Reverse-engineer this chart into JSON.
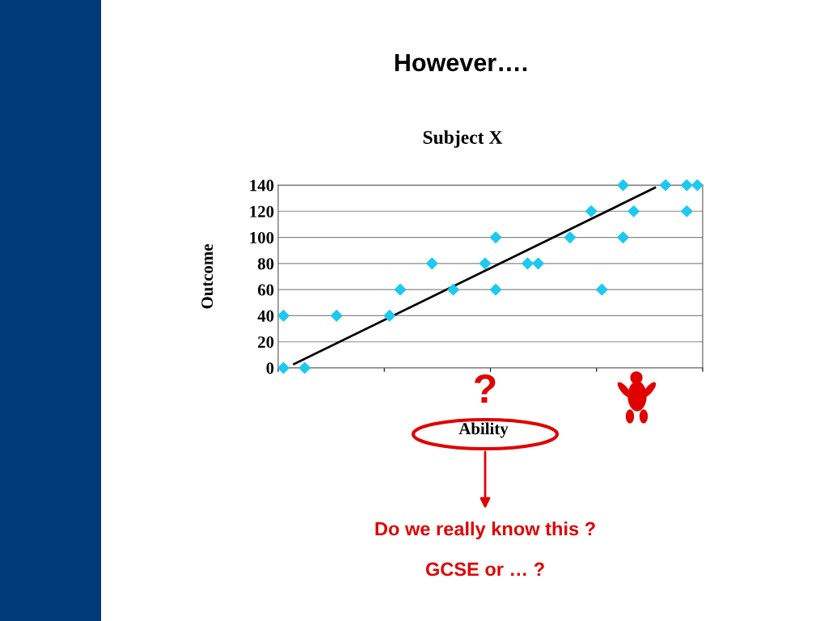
{
  "chart_data": {
    "type": "scatter",
    "title": "However….",
    "subtitle": "Subject X",
    "xlabel": "Ability",
    "ylabel": "Outcome",
    "categories": [
      null,
      null,
      null,
      null,
      null,
      null,
      null,
      null,
      null,
      null,
      null,
      null,
      null,
      null,
      null,
      null,
      null,
      null,
      null,
      null,
      null,
      null,
      null,
      null,
      null,
      null,
      null,
      null,
      null,
      null,
      null,
      null,
      null,
      null,
      null,
      null,
      null,
      null,
      null,
      null
    ],
    "series": [
      {
        "color": "#1ec8f0",
        "marker": "diamond",
        "values": [
          40,
          null,
          0,
          null,
          null,
          40,
          null,
          null,
          null,
          null,
          40,
          60,
          null,
          null,
          80,
          null,
          60,
          null,
          null,
          80,
          100,
          null,
          null,
          80,
          80,
          null,
          null,
          100,
          null,
          120,
          60,
          null,
          140,
          120,
          null,
          null,
          140,
          null,
          140,
          140
        ]
      },
      {
        "color": "#1ec8f0",
        "marker": "diamond",
        "values": [
          0,
          null,
          null,
          null,
          null,
          null,
          null,
          null,
          null,
          null,
          null,
          null,
          null,
          null,
          null,
          null,
          null,
          null,
          null,
          null,
          60,
          null,
          null,
          null,
          null,
          null,
          null,
          null,
          null,
          null,
          null,
          null,
          100,
          null,
          null,
          null,
          null,
          null,
          120,
          null
        ]
      },
      {
        "type": "line",
        "color": "#000000",
        "marker": "none",
        "values": [
          null,
          3,
          null,
          null,
          null,
          null,
          null,
          null,
          null,
          null,
          null,
          null,
          null,
          null,
          null,
          null,
          null,
          null,
          null,
          null,
          null,
          null,
          null,
          null,
          null,
          null,
          null,
          null,
          null,
          null,
          null,
          null,
          null,
          null,
          null,
          138,
          null,
          null,
          null,
          null
        ]
      }
    ],
    "ylim": [
      0,
      140
    ],
    "yticks": [
      0,
      20,
      40,
      60,
      80,
      100,
      120,
      140
    ],
    "tick_labels": "y",
    "grid": "y",
    "annotations": [
      "?",
      "Do we really know this ?",
      "GCSE or … ?"
    ]
  }
}
